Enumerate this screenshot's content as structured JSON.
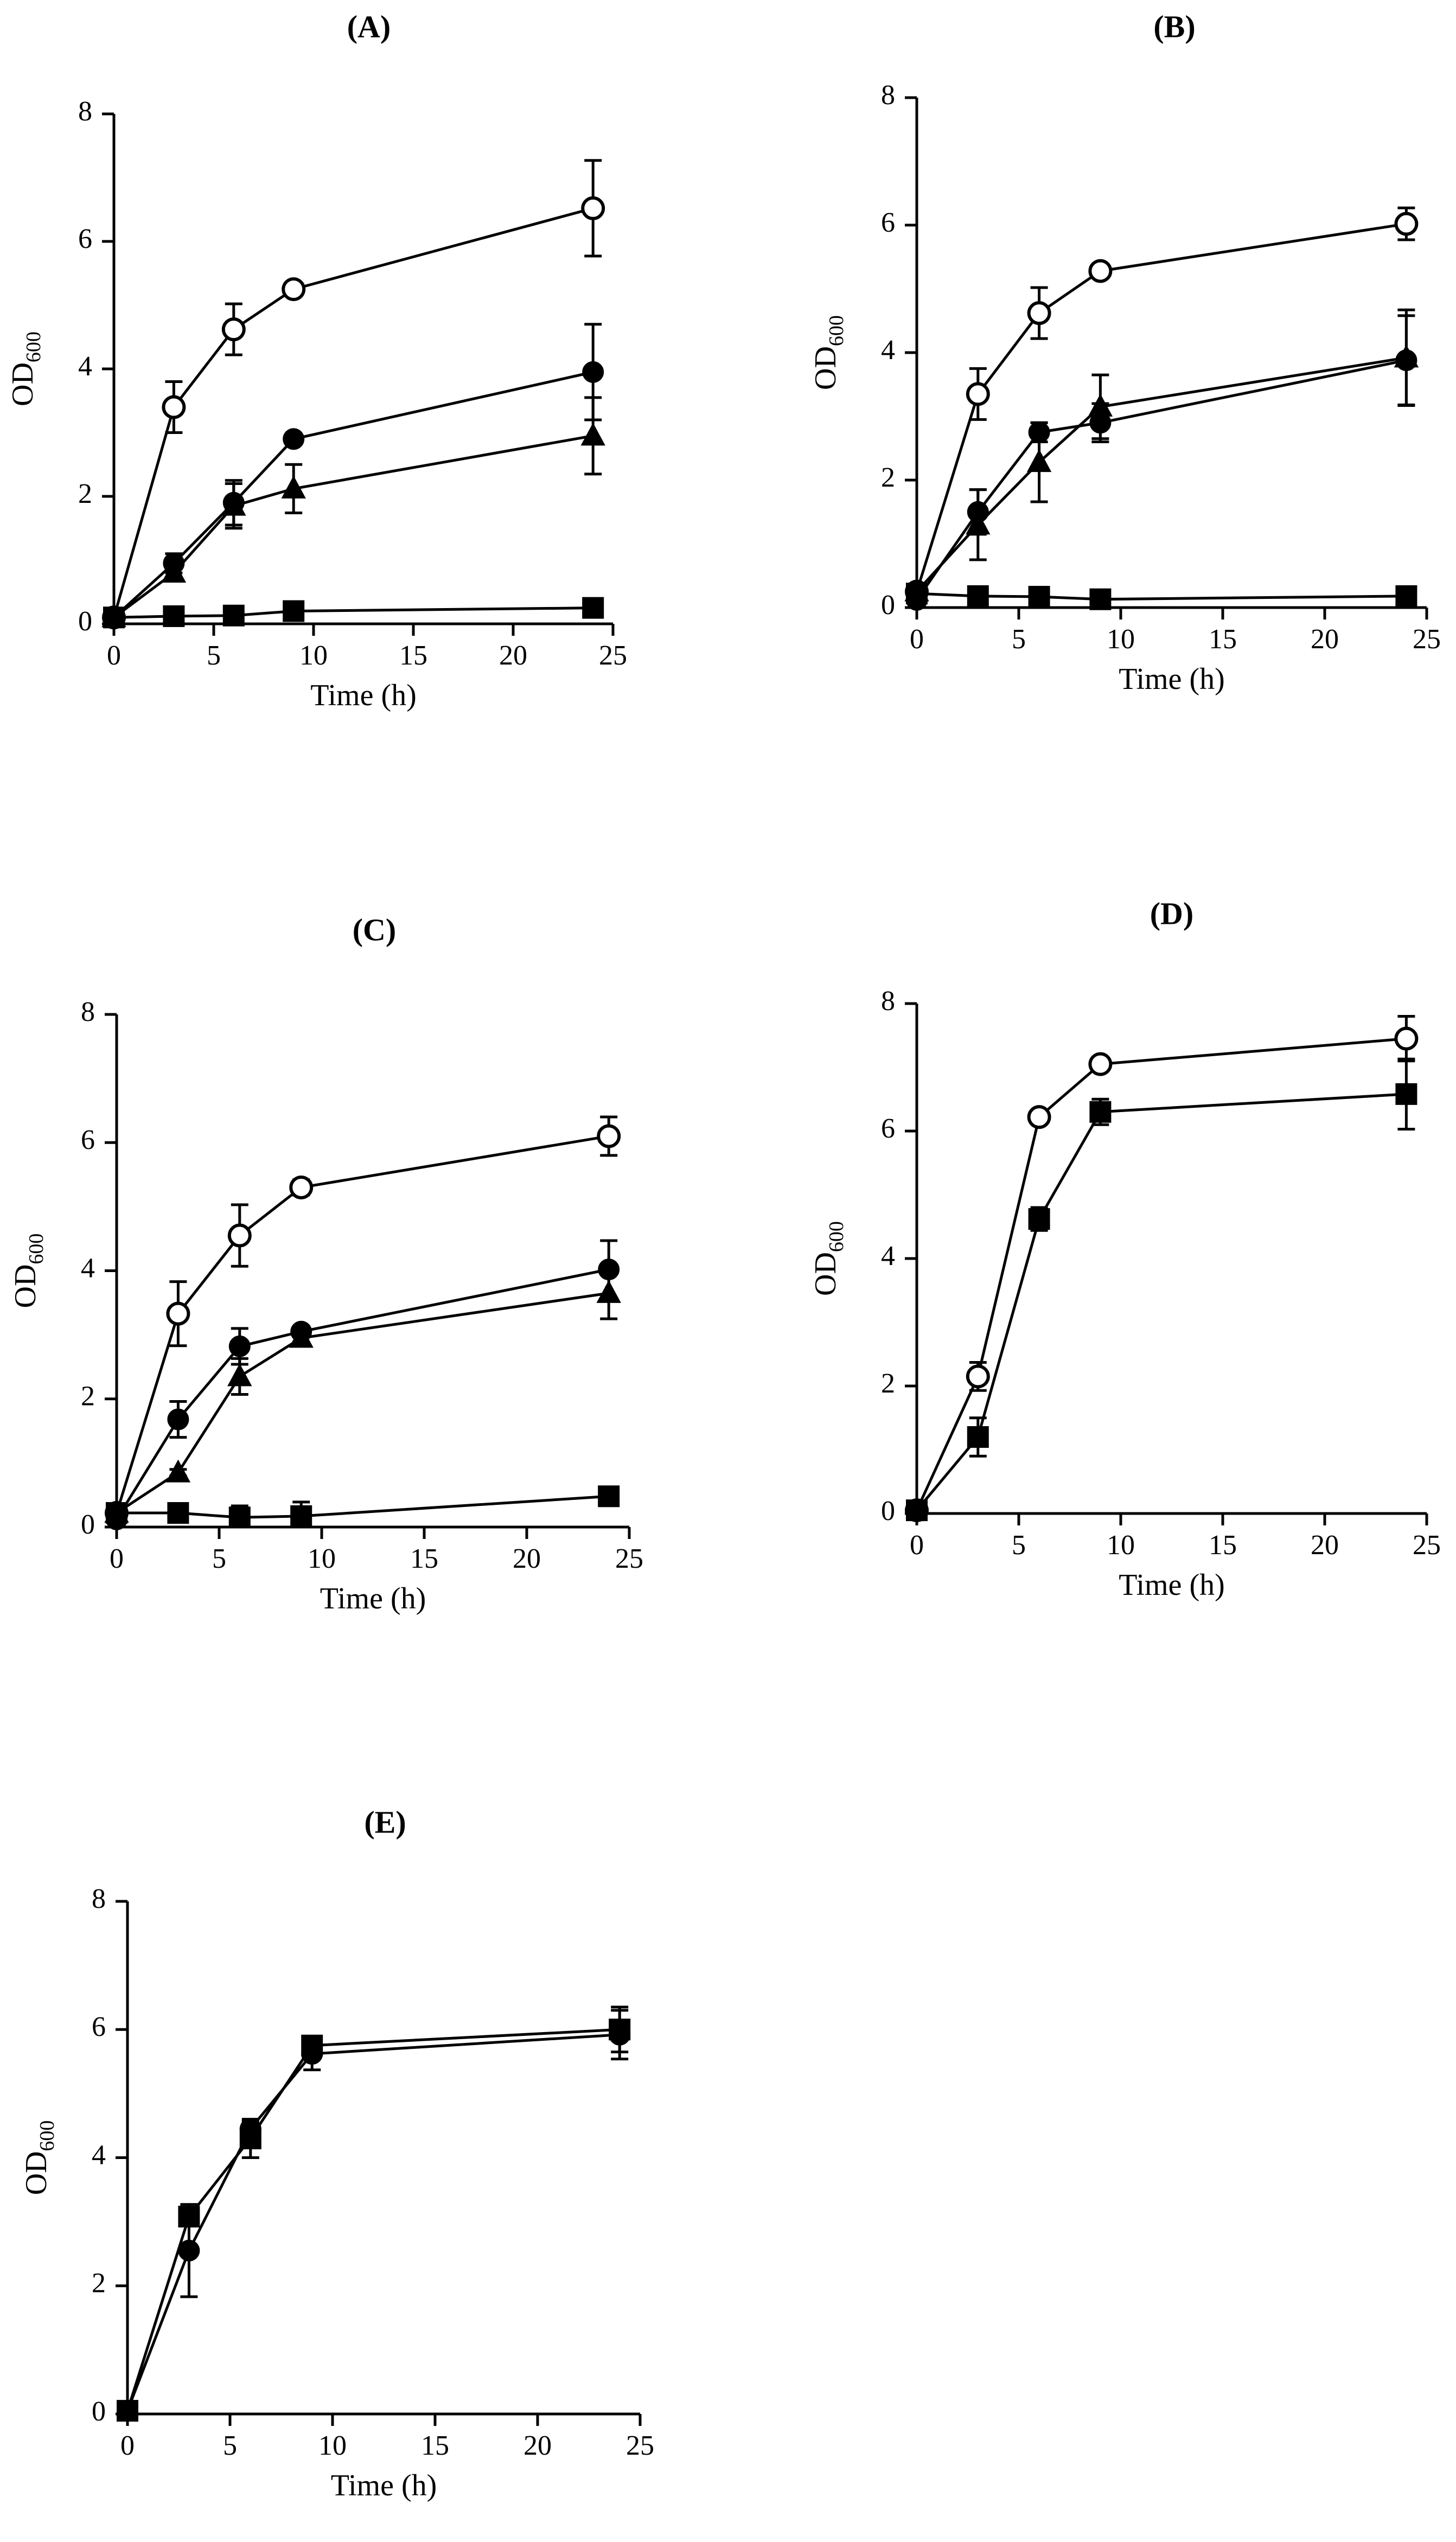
{
  "chart_data": [
    {
      "id": "A",
      "type": "line",
      "title": "(A)",
      "xlabel": "Time (h)",
      "ylabel_main": "OD",
      "ylabel_sub": "600",
      "xlim": [
        0,
        25
      ],
      "ylim": [
        0,
        8
      ],
      "xticks": [
        0,
        5,
        10,
        15,
        20,
        25
      ],
      "yticks": [
        0,
        2,
        4,
        6,
        8
      ],
      "series": [
        {
          "marker": "open-circle",
          "x": [
            0,
            3,
            6,
            9,
            24
          ],
          "y": [
            0.1,
            3.4,
            4.62,
            5.25,
            6.52
          ],
          "err": [
            0,
            0.4,
            0.4,
            0.05,
            0.75
          ]
        },
        {
          "marker": "filled-circle",
          "x": [
            0,
            3,
            6,
            9,
            24
          ],
          "y": [
            0.1,
            0.95,
            1.9,
            2.9,
            3.95
          ],
          "err": [
            0,
            0.15,
            0.35,
            0.05,
            0.75
          ]
        },
        {
          "marker": "filled-triangle",
          "x": [
            0,
            3,
            6,
            9,
            24
          ],
          "y": [
            0.1,
            0.8,
            1.85,
            2.12,
            2.95
          ],
          "err": [
            0,
            0.1,
            0.35,
            0.38,
            0.6
          ]
        },
        {
          "marker": "filled-square",
          "x": [
            0,
            3,
            6,
            9,
            24
          ],
          "y": [
            0.1,
            0.12,
            0.13,
            0.2,
            0.25
          ],
          "err": [
            0,
            0.02,
            0.02,
            0.05,
            0.05
          ]
        }
      ]
    },
    {
      "id": "B",
      "type": "line",
      "title": "(B)",
      "xlabel": "Time (h)",
      "ylabel_main": "OD",
      "ylabel_sub": "600",
      "xlim": [
        0,
        25
      ],
      "ylim": [
        0,
        8
      ],
      "xticks": [
        0,
        5,
        10,
        15,
        20,
        25
      ],
      "yticks": [
        0,
        2,
        4,
        6,
        8
      ],
      "series": [
        {
          "marker": "open-circle",
          "x": [
            0,
            3,
            6,
            9,
            24
          ],
          "y": [
            0.25,
            3.35,
            4.62,
            5.28,
            6.02
          ],
          "err": [
            0,
            0.4,
            0.4,
            0.05,
            0.25
          ]
        },
        {
          "marker": "filled-circle",
          "x": [
            0,
            3,
            6,
            9,
            24
          ],
          "y": [
            0.12,
            1.5,
            2.75,
            2.9,
            3.88
          ],
          "err": [
            0,
            0.35,
            0.15,
            0.3,
            0.7
          ]
        },
        {
          "marker": "filled-triangle",
          "x": [
            0,
            3,
            6,
            9,
            24
          ],
          "y": [
            0.25,
            1.3,
            2.28,
            3.15,
            3.92
          ],
          "err": [
            0,
            0.55,
            0.62,
            0.5,
            0.75
          ]
        },
        {
          "marker": "filled-square",
          "x": [
            0,
            3,
            6,
            9,
            24
          ],
          "y": [
            0.22,
            0.18,
            0.17,
            0.13,
            0.18
          ],
          "err": [
            0,
            0.02,
            0.02,
            0.02,
            0.02
          ]
        }
      ]
    },
    {
      "id": "C",
      "type": "line",
      "title": "(C)",
      "xlabel": "Time (h)",
      "ylabel_main": "OD",
      "ylabel_sub": "600",
      "xlim": [
        0,
        25
      ],
      "ylim": [
        0,
        8
      ],
      "xticks": [
        0,
        5,
        10,
        15,
        20,
        25
      ],
      "yticks": [
        0,
        2,
        4,
        6,
        8
      ],
      "series": [
        {
          "marker": "open-circle",
          "x": [
            0,
            3,
            6,
            9,
            24
          ],
          "y": [
            0.22,
            3.33,
            4.55,
            5.3,
            6.1
          ],
          "err": [
            0,
            0.5,
            0.48,
            0.12,
            0.3
          ]
        },
        {
          "marker": "filled-circle",
          "x": [
            0,
            3,
            6,
            9,
            24
          ],
          "y": [
            0.12,
            1.68,
            2.82,
            3.05,
            4.02
          ],
          "err": [
            0,
            0.28,
            0.28,
            0.05,
            0.45
          ]
        },
        {
          "marker": "filled-triangle",
          "x": [
            0,
            3,
            6,
            9,
            24
          ],
          "y": [
            0.22,
            0.85,
            2.35,
            2.95,
            3.65
          ],
          "err": [
            0,
            0.05,
            0.28,
            0.12,
            0.4
          ]
        },
        {
          "marker": "filled-square",
          "x": [
            0,
            3,
            6,
            9,
            24
          ],
          "y": [
            0.22,
            0.22,
            0.15,
            0.17,
            0.48
          ],
          "err": [
            0,
            0.03,
            0.18,
            0.22,
            0.05
          ]
        }
      ]
    },
    {
      "id": "D",
      "type": "line",
      "title": "(D)",
      "xlabel": "Time (h)",
      "ylabel_main": "OD",
      "ylabel_sub": "600",
      "xlim": [
        0,
        25
      ],
      "ylim": [
        0,
        8
      ],
      "xticks": [
        0,
        5,
        10,
        15,
        20,
        25
      ],
      "yticks": [
        0,
        2,
        4,
        6,
        8
      ],
      "series": [
        {
          "marker": "open-circle",
          "x": [
            0,
            3,
            6,
            9,
            24
          ],
          "y": [
            0.05,
            2.15,
            6.22,
            7.05,
            7.45
          ],
          "err": [
            0,
            0.22,
            0.05,
            0.05,
            0.35
          ]
        },
        {
          "marker": "filled-square",
          "x": [
            0,
            3,
            6,
            9,
            24
          ],
          "y": [
            0.05,
            1.2,
            4.62,
            6.3,
            6.58
          ],
          "err": [
            0,
            0.3,
            0.18,
            0.2,
            0.55
          ]
        }
      ]
    },
    {
      "id": "E",
      "type": "line",
      "title": "(E)",
      "xlabel": "Time (h)",
      "ylabel_main": "OD",
      "ylabel_sub": "600",
      "xlim": [
        0,
        25
      ],
      "ylim": [
        0,
        8
      ],
      "xticks": [
        0,
        5,
        10,
        15,
        20,
        25
      ],
      "yticks": [
        0,
        2,
        4,
        6,
        8
      ],
      "series": [
        {
          "marker": "filled-square",
          "x": [
            0,
            3,
            6,
            9,
            24
          ],
          "y": [
            0.05,
            3.08,
            4.3,
            5.75,
            6.0
          ],
          "err": [
            0,
            0.1,
            0.3,
            0.1,
            0.35
          ]
        },
        {
          "marker": "filled-circle",
          "x": [
            0,
            3,
            6,
            9,
            24
          ],
          "y": [
            0.05,
            2.55,
            4.45,
            5.62,
            5.92
          ],
          "err": [
            0,
            0.72,
            0.12,
            0.25,
            0.38
          ]
        }
      ]
    }
  ]
}
